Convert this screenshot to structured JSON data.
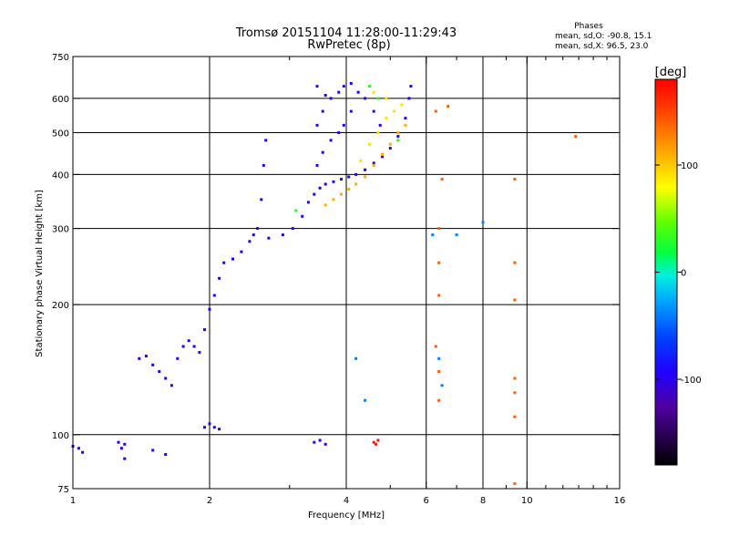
{
  "header": {
    "title": "Tromsø 20151104 11:28:00-11:29:43",
    "subtitle": "RwPretec (8p)"
  },
  "stats": {
    "heading": "Phases",
    "line_o": "mean, sd,O: -90.8, 15.1",
    "line_x": "mean, sd,X:  96.5, 23.0"
  },
  "colorbar": {
    "label": "[deg]",
    "ticks": [
      {
        "value": 100,
        "label": "100"
      },
      {
        "value": 0,
        "label": "0"
      },
      {
        "value": -100,
        "label": "-100"
      }
    ],
    "range": [
      -180,
      180
    ]
  },
  "chart_data": {
    "type": "scatter",
    "title": "Tromsø 20151104 11:28:00-11:29:43",
    "subtitle": "RwPretec (8p)",
    "xlabel": "Frequency [MHz]",
    "ylabel": "Stationary phase Virtual Height [km]",
    "xscale": "log",
    "yscale": "log",
    "xlim": [
      1,
      16
    ],
    "ylim": [
      75,
      750
    ],
    "xticks": [
      {
        "value": 1,
        "label": "1"
      },
      {
        "value": 2,
        "label": "2"
      },
      {
        "value": 4,
        "label": "4"
      },
      {
        "value": 6,
        "label": "6"
      },
      {
        "value": 8,
        "label": "8"
      },
      {
        "value": 10,
        "label": "10"
      },
      {
        "value": 16,
        "label": "16"
      }
    ],
    "yticks": [
      {
        "value": 75,
        "label": "75"
      },
      {
        "value": 100,
        "label": "100"
      },
      {
        "value": 200,
        "label": "200"
      },
      {
        "value": 300,
        "label": "300"
      },
      {
        "value": 400,
        "label": "400"
      },
      {
        "value": 500,
        "label": "500"
      },
      {
        "value": 600,
        "label": "600"
      },
      {
        "value": 750,
        "label": "750"
      }
    ],
    "grid_x": [
      2,
      4,
      6,
      8,
      10
    ],
    "grid_y": [
      100,
      200,
      300,
      400,
      500,
      600
    ],
    "minor_x": [
      3,
      5,
      7,
      9,
      11,
      12,
      13,
      14,
      15
    ],
    "color_by": "phase [deg]",
    "traces": [
      {
        "kind": "O-mode Es/F1 low cusp",
        "phase": -100,
        "points": [
          [
            1.0,
            94
          ],
          [
            1.03,
            93
          ],
          [
            1.05,
            91
          ],
          [
            1.26,
            96
          ],
          [
            1.28,
            93
          ],
          [
            1.3,
            95
          ],
          [
            1.95,
            104
          ],
          [
            2.0,
            106
          ],
          [
            2.05,
            104
          ],
          [
            2.1,
            103
          ]
        ]
      },
      {
        "kind": "O-mode E/F1 trace",
        "phase": -100,
        "points": [
          [
            1.4,
            150
          ],
          [
            1.45,
            152
          ],
          [
            1.5,
            145
          ],
          [
            1.55,
            140
          ],
          [
            1.6,
            135
          ],
          [
            1.65,
            130
          ],
          [
            1.7,
            150
          ],
          [
            1.75,
            160
          ],
          [
            1.8,
            165
          ],
          [
            1.85,
            160
          ],
          [
            1.9,
            155
          ],
          [
            1.95,
            175
          ],
          [
            2.0,
            195
          ],
          [
            2.05,
            210
          ],
          [
            2.1,
            230
          ],
          [
            2.15,
            250
          ],
          [
            2.25,
            255
          ],
          [
            2.35,
            265
          ],
          [
            2.45,
            280
          ],
          [
            2.55,
            300
          ],
          [
            2.6,
            350
          ],
          [
            2.63,
            420
          ],
          [
            2.66,
            480
          ]
        ]
      },
      {
        "kind": "O-mode F2 trace",
        "phase": -100,
        "points": [
          [
            2.5,
            290
          ],
          [
            2.7,
            285
          ],
          [
            2.9,
            290
          ],
          [
            3.05,
            300
          ],
          [
            3.2,
            320
          ],
          [
            3.3,
            345
          ],
          [
            3.4,
            360
          ],
          [
            3.5,
            372
          ],
          [
            3.6,
            380
          ],
          [
            3.75,
            385
          ],
          [
            3.9,
            390
          ],
          [
            4.05,
            395
          ],
          [
            4.2,
            400
          ],
          [
            4.4,
            410
          ],
          [
            4.6,
            425
          ],
          [
            4.8,
            440
          ],
          [
            5.0,
            460
          ],
          [
            5.2,
            490
          ],
          [
            5.4,
            540
          ],
          [
            5.5,
            600
          ],
          [
            5.55,
            640
          ]
        ]
      },
      {
        "kind": "O-mode spread F",
        "phase": -100,
        "points": [
          [
            3.45,
            420
          ],
          [
            3.45,
            520
          ],
          [
            3.45,
            640
          ],
          [
            3.55,
            450
          ],
          [
            3.55,
            560
          ],
          [
            3.6,
            610
          ],
          [
            3.7,
            480
          ],
          [
            3.7,
            600
          ],
          [
            3.85,
            500
          ],
          [
            3.85,
            620
          ],
          [
            3.95,
            520
          ],
          [
            3.95,
            640
          ],
          [
            4.1,
            560
          ],
          [
            4.1,
            650
          ],
          [
            4.25,
            620
          ],
          [
            4.4,
            600
          ],
          [
            4.6,
            560
          ],
          [
            4.75,
            520
          ]
        ]
      },
      {
        "kind": "X-mode F2 trace",
        "phase": 110,
        "points": [
          [
            3.6,
            340
          ],
          [
            3.75,
            350
          ],
          [
            3.9,
            360
          ],
          [
            4.05,
            370
          ],
          [
            4.2,
            380
          ],
          [
            4.4,
            395
          ],
          [
            4.6,
            420
          ],
          [
            4.8,
            445
          ],
          [
            5.0,
            470
          ],
          [
            5.2,
            500
          ],
          [
            5.4,
            520
          ]
        ]
      },
      {
        "kind": "X-mode spread",
        "phase": 90,
        "points": [
          [
            4.3,
            430
          ],
          [
            4.5,
            470
          ],
          [
            4.7,
            500
          ],
          [
            4.9,
            540
          ],
          [
            5.1,
            560
          ],
          [
            5.3,
            580
          ],
          [
            4.6,
            620
          ],
          [
            4.9,
            600
          ]
        ]
      },
      {
        "kind": "scattered echoes",
        "phase": 140,
        "points": [
          [
            6.3,
            560
          ],
          [
            6.5,
            390
          ],
          [
            6.7,
            575
          ],
          [
            6.4,
            300
          ],
          [
            6.4,
            250
          ],
          [
            6.4,
            210
          ],
          [
            6.3,
            160
          ],
          [
            6.4,
            140
          ],
          [
            6.4,
            120
          ],
          [
            9.4,
            390
          ],
          [
            9.4,
            250
          ],
          [
            9.4,
            205
          ],
          [
            9.4,
            135
          ],
          [
            9.4,
            125
          ],
          [
            9.4,
            110
          ],
          [
            9.4,
            77
          ],
          [
            12.8,
            490
          ]
        ]
      },
      {
        "kind": "scattered cyan/teal",
        "phase": -40,
        "points": [
          [
            6.2,
            290
          ],
          [
            6.4,
            150
          ],
          [
            6.5,
            130
          ],
          [
            8.0,
            310
          ],
          [
            4.4,
            120
          ],
          [
            4.2,
            150
          ],
          [
            7.0,
            290
          ]
        ]
      },
      {
        "kind": "scattered green",
        "phase": 30,
        "points": [
          [
            4.5,
            640
          ],
          [
            4.7,
            600
          ],
          [
            3.1,
            330
          ],
          [
            5.2,
            480
          ]
        ]
      },
      {
        "kind": "low-height red echoes",
        "phase": 170,
        "points": [
          [
            4.6,
            96
          ],
          [
            4.65,
            95
          ],
          [
            4.7,
            97
          ]
        ]
      },
      {
        "kind": "low-height blue echoes",
        "phase": -100,
        "points": [
          [
            3.4,
            96
          ],
          [
            3.5,
            97
          ],
          [
            3.6,
            95
          ],
          [
            1.5,
            92
          ],
          [
            1.6,
            90
          ],
          [
            1.3,
            88
          ]
        ]
      }
    ]
  }
}
